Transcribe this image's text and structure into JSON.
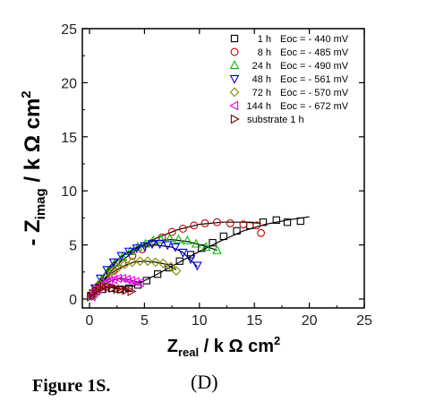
{
  "chart_data": {
    "type": "scatter",
    "xlim": [
      0,
      25
    ],
    "ylim": [
      0,
      25
    ],
    "x_ticks": [
      "0",
      "5",
      "10",
      "15",
      "20",
      "25"
    ],
    "y_ticks": [
      "0",
      "5",
      "10",
      "15",
      "20",
      "25"
    ],
    "xlabel": {
      "main": "Z",
      "sub": "real",
      "units": " / k Ω cm",
      "sup": "2"
    },
    "ylabel": {
      "main": "- Z",
      "sub": "imag",
      "units": " / k Ω cm",
      "sup": "2"
    },
    "legend_position": "top-right",
    "series": [
      {
        "label": "1 h",
        "eoc": "Eoc = - 440 mV",
        "marker": "square",
        "color": "#000000",
        "x": [
          0.2,
          0.6,
          1.2,
          2.0,
          2.8,
          3.6,
          4.4,
          5.2,
          6.2,
          7.2,
          8.2,
          9.2,
          10.2,
          11.2,
          12.2,
          13.4,
          14.6,
          15.8,
          17.0,
          18.0,
          19.2
        ],
        "y": [
          0.3,
          0.7,
          0.9,
          1.0,
          0.9,
          1.0,
          1.3,
          1.7,
          2.3,
          2.9,
          3.5,
          4.1,
          4.7,
          5.2,
          5.8,
          6.3,
          6.8,
          7.1,
          7.3,
          7.1,
          7.2
        ],
        "fit": [
          [
            0.1,
            0.3
          ],
          [
            1.0,
            1.0
          ],
          [
            2.5,
            1.1
          ],
          [
            4.0,
            1.2
          ],
          [
            6.0,
            2.2
          ],
          [
            8.0,
            3.3
          ],
          [
            10.0,
            4.4
          ],
          [
            12.0,
            5.4
          ],
          [
            14.0,
            6.3
          ],
          [
            16.0,
            6.9
          ],
          [
            18.0,
            7.3
          ],
          [
            20.0,
            7.6
          ]
        ]
      },
      {
        "label": "8 h",
        "eoc": "Eoc = - 485 mV",
        "marker": "circle",
        "color": "#cc0000",
        "x": [
          0.2,
          0.5,
          0.9,
          1.5,
          2.2,
          3.0,
          3.9,
          4.8,
          5.7,
          6.6,
          7.5,
          8.5,
          9.5,
          10.5,
          11.6,
          12.8,
          14.0,
          15.2,
          15.6
        ],
        "y": [
          0.3,
          0.8,
          1.3,
          2.0,
          2.6,
          3.3,
          4.0,
          4.6,
          5.2,
          5.7,
          6.2,
          6.5,
          6.8,
          7.0,
          7.1,
          7.0,
          6.9,
          6.8,
          6.1
        ],
        "fit": [
          [
            0.1,
            0.2
          ],
          [
            1.0,
            1.5
          ],
          [
            2.0,
            2.6
          ],
          [
            3.0,
            3.6
          ],
          [
            4.5,
            4.7
          ],
          [
            6.0,
            5.6
          ],
          [
            8.0,
            6.4
          ],
          [
            10.0,
            6.9
          ],
          [
            12.0,
            7.1
          ],
          [
            14.0,
            7.1
          ],
          [
            15.6,
            7.0
          ]
        ]
      },
      {
        "label": "24 h",
        "eoc": "Eoc = - 490 mV",
        "marker": "triangle-up",
        "color": "#00bb00",
        "x": [
          0.2,
          0.6,
          1.1,
          1.7,
          2.3,
          3.0,
          3.7,
          4.4,
          5.1,
          5.8,
          6.5,
          7.3,
          8.1,
          8.9,
          9.7,
          10.6,
          11.6
        ],
        "y": [
          0.3,
          1.0,
          1.8,
          2.6,
          3.3,
          3.9,
          4.4,
          4.8,
          5.1,
          5.4,
          5.5,
          5.6,
          5.5,
          5.4,
          5.1,
          4.8,
          4.5
        ],
        "fit": [
          [
            0.1,
            0.2
          ],
          [
            1.0,
            1.8
          ],
          [
            2.0,
            3.0
          ],
          [
            3.0,
            4.0
          ],
          [
            4.5,
            4.9
          ],
          [
            6.0,
            5.4
          ],
          [
            7.5,
            5.5
          ],
          [
            9.0,
            5.3
          ],
          [
            10.5,
            4.9
          ],
          [
            11.6,
            4.5
          ]
        ]
      },
      {
        "label": "48 h",
        "eoc": "Eoc = - 561 mV",
        "marker": "triangle-down",
        "color": "#0000ee",
        "x": [
          0.2,
          0.5,
          1.0,
          1.6,
          2.2,
          2.9,
          3.6,
          4.3,
          5.0,
          5.7,
          6.4,
          7.1,
          7.8,
          8.5,
          9.2,
          9.8
        ],
        "y": [
          0.3,
          1.0,
          1.9,
          2.7,
          3.4,
          4.0,
          4.4,
          4.7,
          4.9,
          5.1,
          5.1,
          5.0,
          4.8,
          4.3,
          3.7,
          3.1
        ],
        "fit": [
          [
            0.1,
            0.2
          ],
          [
            1.0,
            1.9
          ],
          [
            2.0,
            3.2
          ],
          [
            3.0,
            4.0
          ],
          [
            4.5,
            4.8
          ],
          [
            6.0,
            5.0
          ],
          [
            7.5,
            4.8
          ],
          [
            8.5,
            4.3
          ],
          [
            9.3,
            3.5
          ],
          [
            9.8,
            3.0
          ]
        ]
      },
      {
        "label": "72 h",
        "eoc": "Eoc = - 570 mV",
        "marker": "diamond",
        "color": "#888800",
        "x": [
          0.2,
          0.5,
          0.9,
          1.4,
          2.0,
          2.6,
          3.2,
          3.9,
          4.6,
          5.3,
          6.0,
          6.7,
          7.4,
          7.9
        ],
        "y": [
          0.3,
          0.8,
          1.4,
          2.0,
          2.5,
          2.9,
          3.2,
          3.4,
          3.5,
          3.5,
          3.4,
          3.3,
          3.0,
          2.6
        ],
        "fit": [
          [
            0.1,
            0.2
          ],
          [
            1.0,
            1.4
          ],
          [
            2.0,
            2.4
          ],
          [
            3.0,
            3.0
          ],
          [
            4.0,
            3.4
          ],
          [
            5.0,
            3.5
          ],
          [
            6.0,
            3.4
          ],
          [
            7.0,
            3.2
          ],
          [
            7.9,
            2.7
          ]
        ]
      },
      {
        "label": "144 h",
        "eoc": "Eoc = - 672 mV",
        "marker": "triangle-left",
        "color": "#ee00ee",
        "x": [
          0.2,
          0.4,
          0.7,
          1.0,
          1.4,
          1.8,
          2.2,
          2.6,
          3.0,
          3.4,
          3.8,
          4.2,
          4.6
        ],
        "y": [
          0.2,
          0.5,
          0.9,
          1.2,
          1.5,
          1.7,
          1.8,
          1.9,
          1.9,
          1.8,
          1.7,
          1.6,
          1.5
        ],
        "fit": [
          [
            0.1,
            0.1
          ],
          [
            0.6,
            0.8
          ],
          [
            1.2,
            1.3
          ],
          [
            2.0,
            1.7
          ],
          [
            2.8,
            1.9
          ],
          [
            3.6,
            1.8
          ],
          [
            4.6,
            1.5
          ]
        ]
      },
      {
        "label": "substrate 1 h",
        "eoc": "",
        "marker": "triangle-right",
        "color": "#880000",
        "x": [
          0.1,
          0.3,
          0.6,
          0.9,
          1.3,
          1.7,
          2.1,
          2.5,
          2.9,
          3.3,
          3.8
        ],
        "y": [
          0.2,
          0.5,
          0.8,
          1.0,
          1.1,
          1.1,
          1.0,
          0.9,
          0.9,
          0.8,
          0.7
        ],
        "fit": [
          [
            0.1,
            0.2
          ],
          [
            0.8,
            0.9
          ],
          [
            1.5,
            1.1
          ],
          [
            2.3,
            1.0
          ],
          [
            3.0,
            0.9
          ],
          [
            3.8,
            0.7
          ]
        ]
      }
    ]
  },
  "caption": {
    "figure": "Figure 1S.",
    "panel": "(D)"
  }
}
